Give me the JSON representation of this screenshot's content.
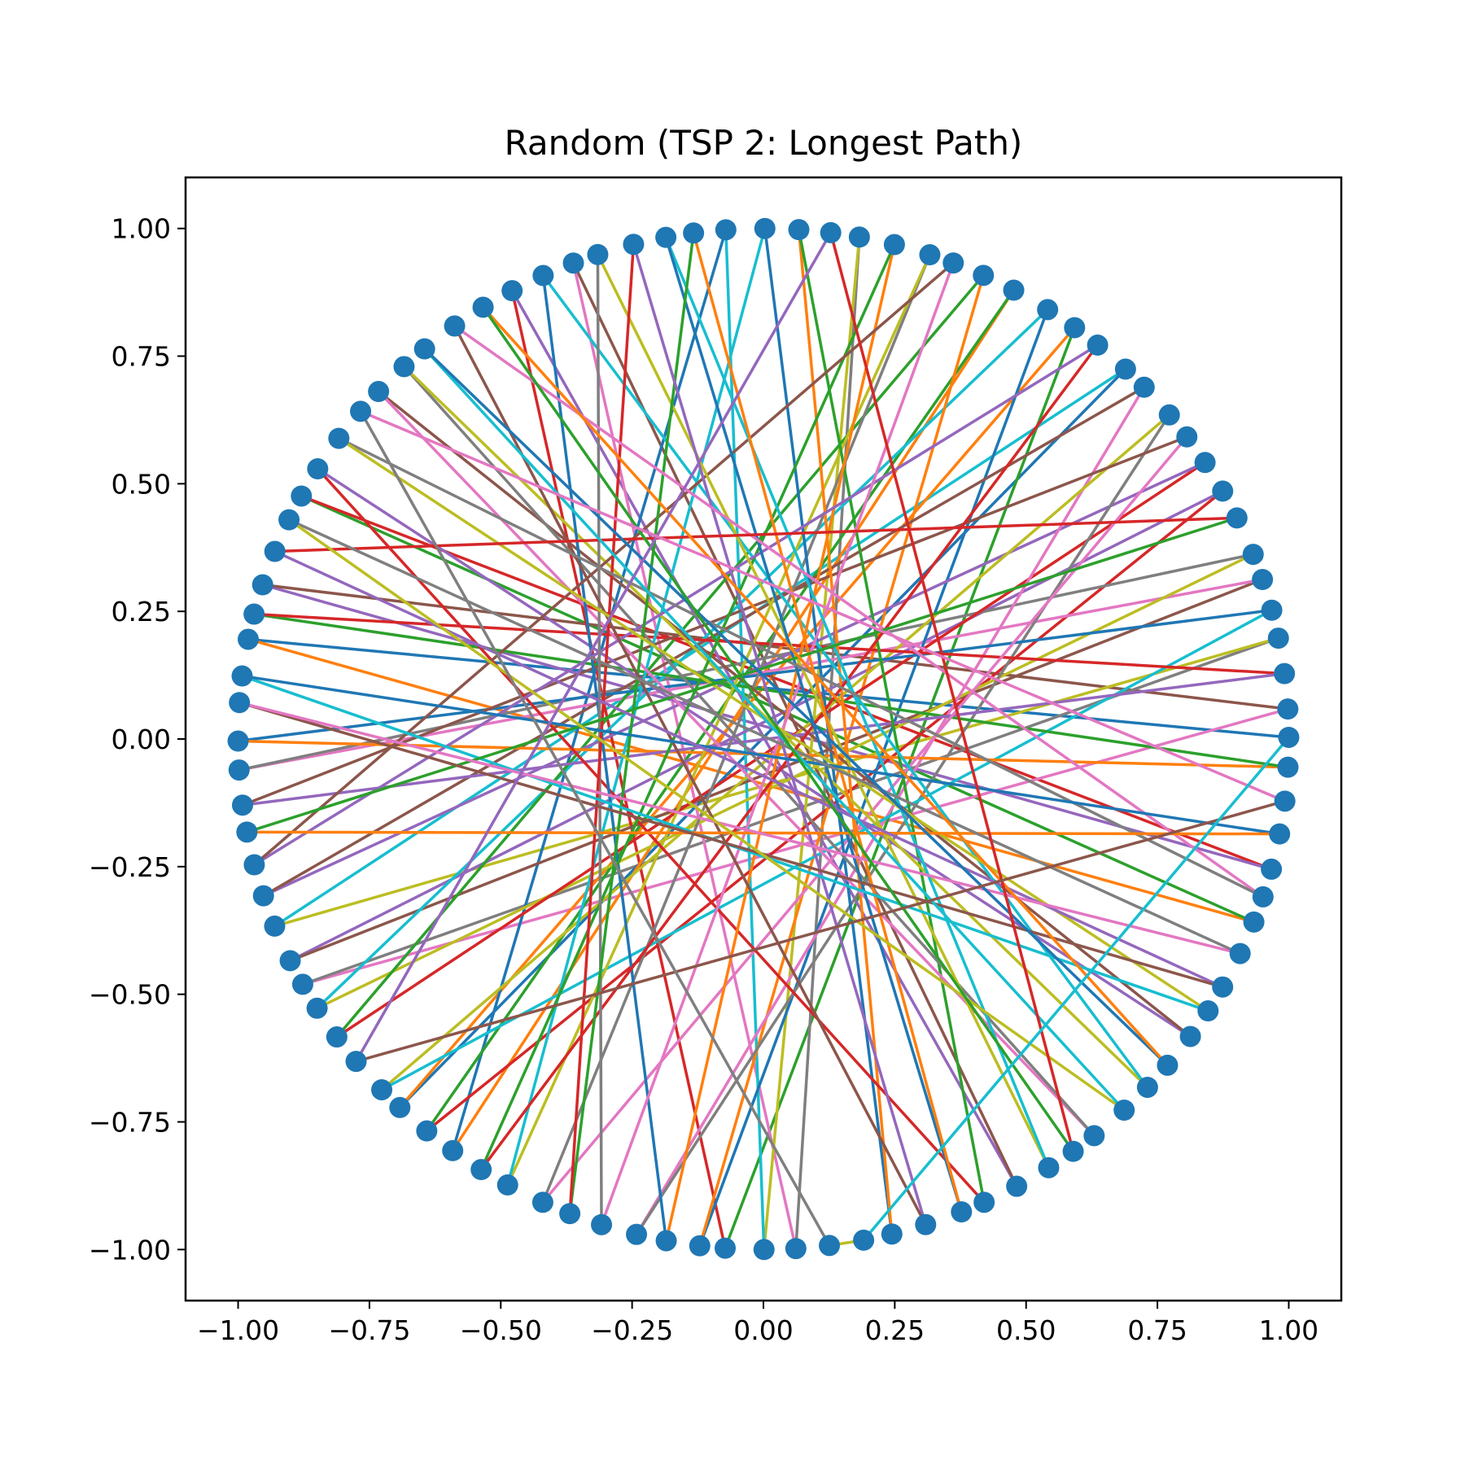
{
  "chart_data": {
    "type": "line",
    "title": "Random (TSP 2: Longest Path)",
    "xlabel": "",
    "ylabel": "",
    "xlim": [
      -1.1,
      1.1
    ],
    "ylim": [
      -1.1,
      1.1
    ],
    "grid": false,
    "legend": "none",
    "xticks": [
      -1.0,
      -0.75,
      -0.5,
      -0.25,
      0.0,
      0.25,
      0.5,
      0.75,
      1.0
    ],
    "yticks": [
      -1.0,
      -0.75,
      -0.5,
      -0.25,
      0.0,
      0.25,
      0.5,
      0.75,
      1.0
    ],
    "xtick_labels": [
      "−1.00",
      "−0.75",
      "−0.50",
      "−0.25",
      "0.00",
      "0.25",
      "0.50",
      "0.75",
      "1.00"
    ],
    "ytick_labels": [
      "−1.00",
      "−0.75",
      "−0.50",
      "−0.25",
      "0.00",
      "0.25",
      "0.50",
      "0.75",
      "1.00"
    ],
    "marker_color": "#1f77b4",
    "line_colors": [
      "#1f77b4",
      "#ff7f0e",
      "#2ca02c",
      "#d62728",
      "#9467bd",
      "#8c564b",
      "#e377c2",
      "#7f7f7f",
      "#bcbd22",
      "#17becf"
    ],
    "points": {
      "count": 100,
      "angle_start_deg": 0,
      "angle_step_deg": 3.6,
      "angle_jitter_deg": 0.6,
      "radius": 1.0
    },
    "path_mode": "longest-tour",
    "path_segments": 100
  }
}
